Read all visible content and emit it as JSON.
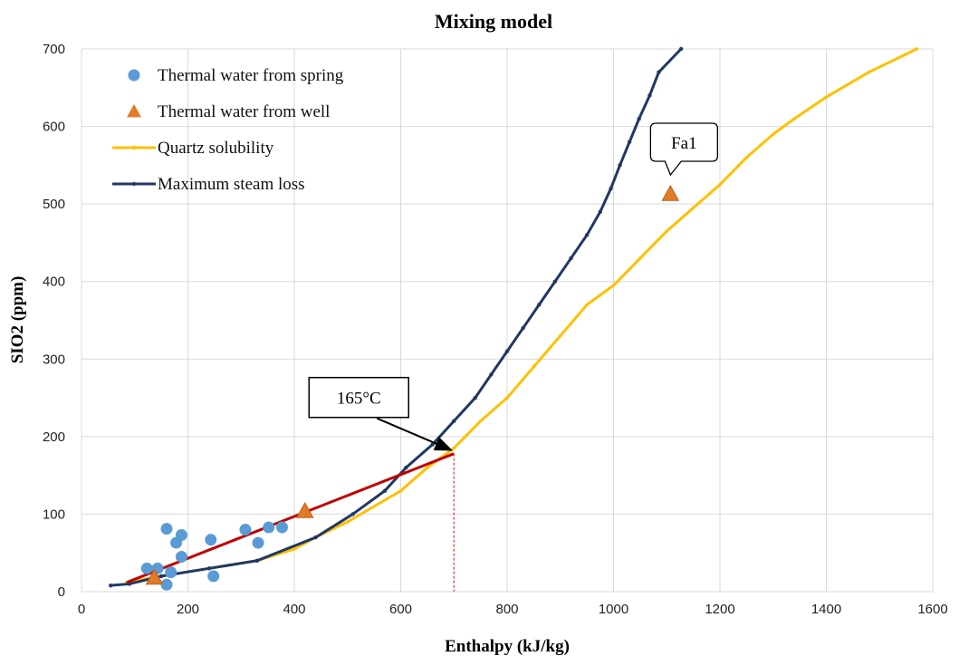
{
  "chart_data": {
    "type": "scatter",
    "title": "Mixing model",
    "xlabel": "Enthalpy (kJ/kg)",
    "ylabel": "SIO2 (ppm)",
    "xlim": [
      0,
      1600
    ],
    "ylim": [
      0,
      700
    ],
    "x_ticks": [
      0,
      200,
      400,
      600,
      800,
      1000,
      1200,
      1400,
      1600
    ],
    "y_ticks": [
      0,
      100,
      200,
      300,
      400,
      500,
      600,
      700
    ],
    "grid": true,
    "legend_position": "top-left",
    "colors": {
      "spring": "#5b9bd5",
      "well": "#e07b28",
      "quartz": "#ffc000",
      "steam": "#1f3864",
      "mixing_line": "#c00000",
      "guide": "#ff0000"
    },
    "series": [
      {
        "name": "Thermal water from  spring",
        "kind": "scatter",
        "marker": "circle",
        "points": [
          [
            123,
            30
          ],
          [
            143,
            30
          ],
          [
            160,
            81
          ],
          [
            160,
            9
          ],
          [
            168,
            25
          ],
          [
            178,
            63
          ],
          [
            188,
            73
          ],
          [
            188,
            45
          ],
          [
            243,
            67
          ],
          [
            248,
            20
          ],
          [
            308,
            80
          ],
          [
            332,
            63
          ],
          [
            352,
            83
          ],
          [
            377,
            83
          ]
        ]
      },
      {
        "name": "Thermal water from well",
        "kind": "scatter",
        "marker": "triangle",
        "points": [
          [
            137,
            18
          ],
          [
            420,
            104
          ],
          [
            1107,
            513
          ]
        ]
      },
      {
        "name": "Quartz solubility",
        "kind": "line",
        "points": [
          [
            85,
            12
          ],
          [
            150,
            20
          ],
          [
            240,
            30
          ],
          [
            330,
            40
          ],
          [
            400,
            55
          ],
          [
            440,
            70
          ],
          [
            500,
            90
          ],
          [
            600,
            130
          ],
          [
            650,
            160
          ],
          [
            700,
            185
          ],
          [
            750,
            220
          ],
          [
            800,
            250
          ],
          [
            850,
            290
          ],
          [
            900,
            330
          ],
          [
            950,
            370
          ],
          [
            1000,
            395
          ],
          [
            1050,
            430
          ],
          [
            1100,
            465
          ],
          [
            1150,
            495
          ],
          [
            1200,
            525
          ],
          [
            1250,
            560
          ],
          [
            1300,
            590
          ],
          [
            1340,
            610
          ],
          [
            1400,
            638
          ],
          [
            1480,
            670
          ],
          [
            1570,
            700
          ]
        ]
      },
      {
        "name": "Maximum steam loss",
        "kind": "line",
        "points": [
          [
            55,
            8
          ],
          [
            90,
            10
          ],
          [
            150,
            20
          ],
          [
            240,
            30
          ],
          [
            330,
            40
          ],
          [
            440,
            70
          ],
          [
            510,
            100
          ],
          [
            570,
            130
          ],
          [
            610,
            160
          ],
          [
            660,
            190
          ],
          [
            700,
            220
          ],
          [
            740,
            250
          ],
          [
            770,
            280
          ],
          [
            800,
            310
          ],
          [
            830,
            340
          ],
          [
            860,
            370
          ],
          [
            890,
            400
          ],
          [
            920,
            430
          ],
          [
            950,
            460
          ],
          [
            975,
            490
          ],
          [
            995,
            520
          ],
          [
            1012,
            550
          ],
          [
            1030,
            580
          ],
          [
            1048,
            610
          ],
          [
            1068,
            640
          ],
          [
            1085,
            670
          ],
          [
            1127,
            700
          ]
        ]
      }
    ],
    "mixing_line": [
      [
        85,
        12
      ],
      [
        700,
        178
      ]
    ],
    "guide_line": {
      "x": 700,
      "y": 178
    },
    "annotations": [
      {
        "id": "temp",
        "text": "165°C",
        "target": [
          700,
          178
        ]
      },
      {
        "id": "fa1",
        "text": "Fa1",
        "target": [
          1107,
          513
        ]
      }
    ]
  }
}
